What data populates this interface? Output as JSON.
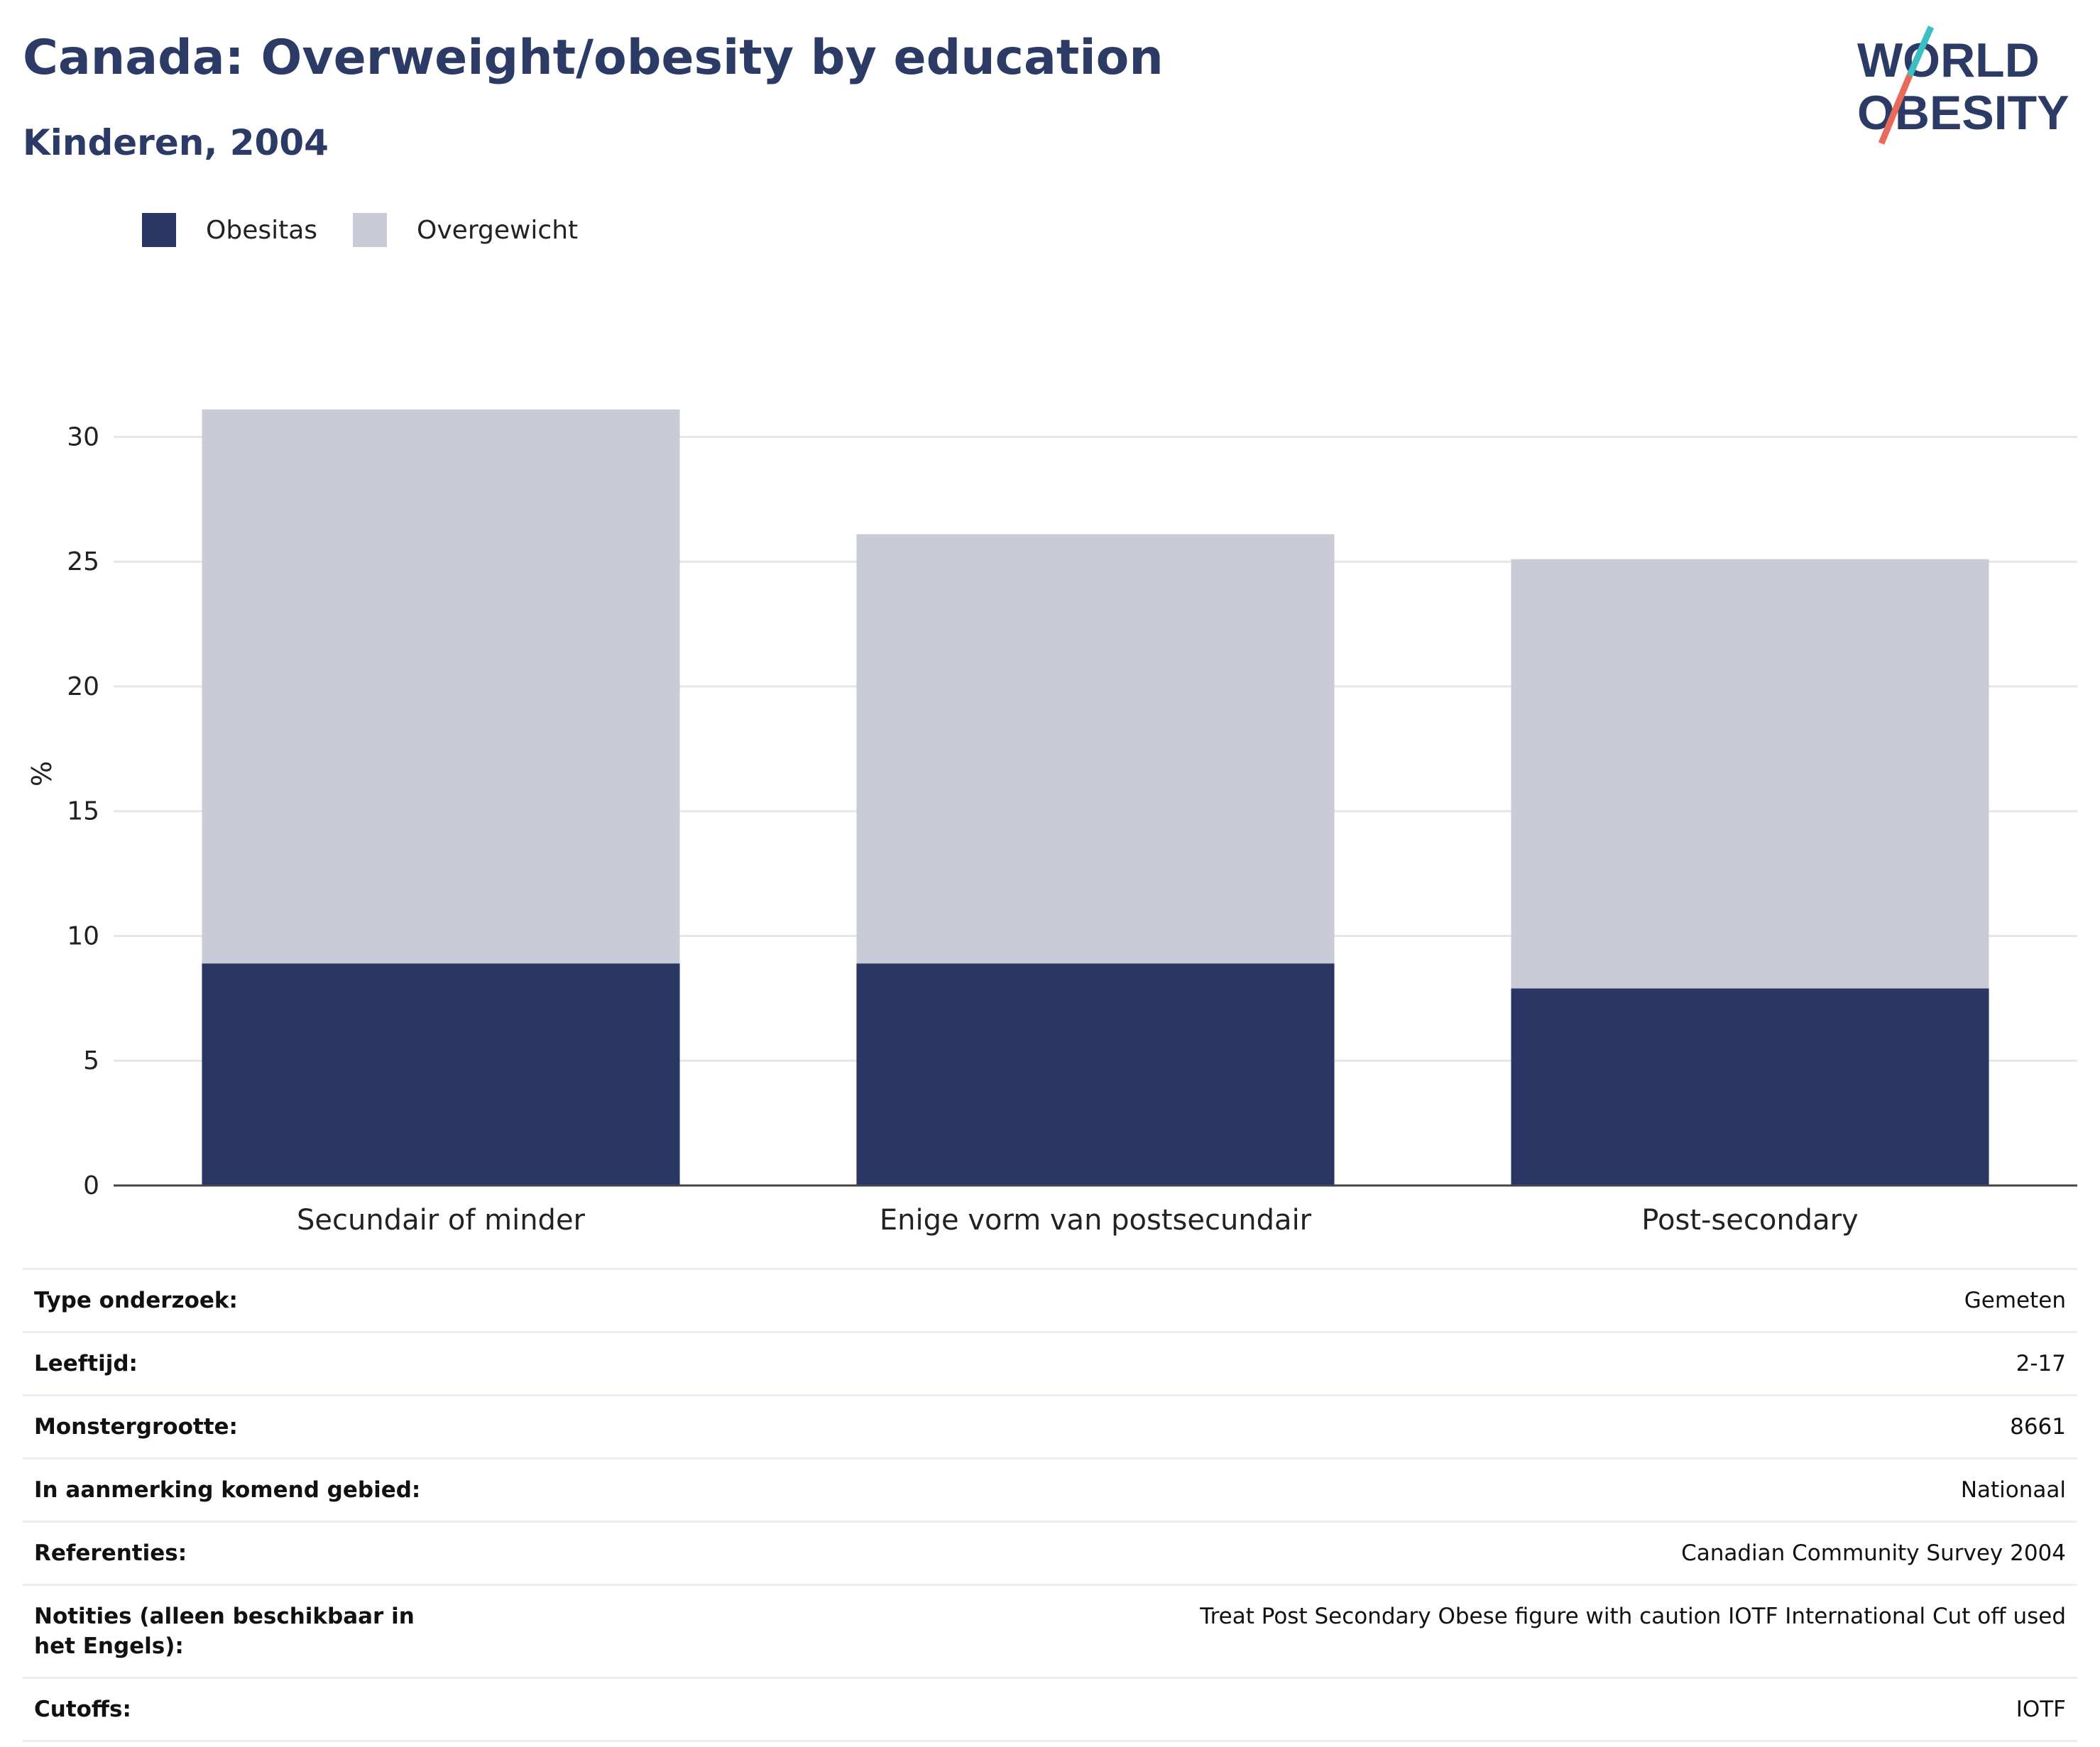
{
  "header": {
    "title": "Canada: Overweight/obesity by education",
    "subtitle": "Kinderen, 2004"
  },
  "logo": {
    "text_line1": "WORLD",
    "text_line2": "OBESITY",
    "colors": {
      "text": "#2c3a66",
      "slash_top": "#3bbfc2",
      "slash_bottom": "#e86a58"
    }
  },
  "legend": {
    "items": [
      {
        "label": "Obesitas",
        "color": "#2a3664"
      },
      {
        "label": "Overgewicht",
        "color": "#c9cbd7"
      }
    ]
  },
  "chart_data": {
    "type": "bar",
    "stacked": true,
    "title": "Canada: Overweight/obesity by education",
    "subtitle": "Kinderen, 2004",
    "xlabel": "",
    "ylabel": "%",
    "categories": [
      "Secundair of minder",
      "Enige vorm van postsecundair",
      "Post-secondary"
    ],
    "series": [
      {
        "name": "Obesitas",
        "color": "#2a3664",
        "values": [
          8.9,
          8.9,
          7.9
        ]
      },
      {
        "name": "Overgewicht",
        "color": "#c9cbd7",
        "values": [
          22.2,
          17.2,
          17.2
        ]
      }
    ],
    "ylim": [
      0,
      33
    ],
    "yticks": [
      0,
      5,
      10,
      15,
      20,
      25,
      30
    ],
    "grid": true,
    "legend_position": "top-left"
  },
  "info": {
    "rows": [
      {
        "label": "Type onderzoek:",
        "value": "Gemeten"
      },
      {
        "label": "Leeftijd:",
        "value": "2-17"
      },
      {
        "label": "Monstergrootte:",
        "value": "8661"
      },
      {
        "label": "In aanmerking komend gebied:",
        "value": "Nationaal"
      },
      {
        "label": "Referenties:",
        "value": "Canadian Community Survey 2004"
      },
      {
        "label": "Notities (alleen beschikbaar in het Engels):",
        "value": "Treat Post Secondary Obese figure with caution IOTF International Cut off used"
      },
      {
        "label": "Cutoffs:",
        "value": "IOTF"
      }
    ]
  }
}
